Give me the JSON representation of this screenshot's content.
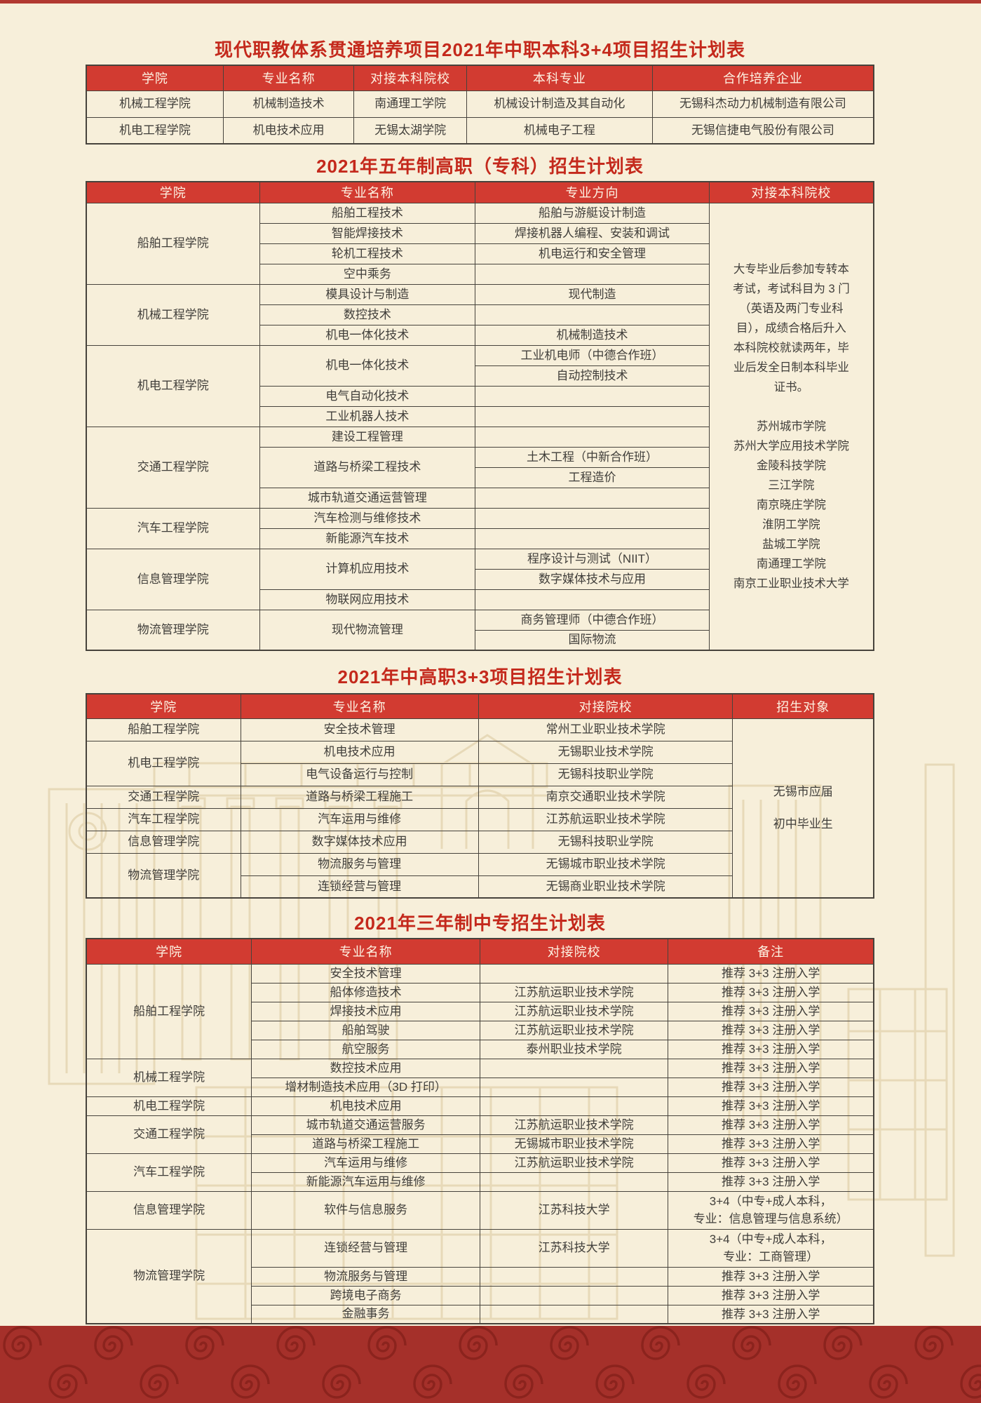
{
  "page": {
    "background_color": "#f7efda",
    "top_strip_color": "#b23931",
    "title_color": "#c4291c",
    "header_bar_color": "#d23b31",
    "border_color": "#47433c",
    "band_color": "#a5302a",
    "band_swirl_color": "#8b231d",
    "watermark": "building-line-art"
  },
  "table_3plus4": {
    "title": "现代职教体系贯通培养项目2021年中职本科3+4项目招生计划表",
    "headers": [
      "学院",
      "专业名称",
      "对接本科院校",
      "本科专业",
      "合作培养企业"
    ],
    "col_names": [
      "college-cell",
      "major-cell",
      "partner-university-cell",
      "bachelor-major-cell",
      "partner-company-cell"
    ],
    "rows": [
      {
        "cells": [
          {
            "t": "机械工程学院"
          },
          {
            "t": "机械制造技术"
          },
          {
            "t": "南通理工学院"
          },
          {
            "t": "机械设计制造及其自动化"
          },
          {
            "t": "无锡科杰动力机械制造有限公司"
          }
        ]
      },
      {
        "cells": [
          {
            "t": "机电工程学院"
          },
          {
            "t": "机电技术应用"
          },
          {
            "t": "无锡太湖学院"
          },
          {
            "t": "机械电子工程"
          },
          {
            "t": "无锡信捷电气股份有限公司"
          }
        ]
      }
    ]
  },
  "table_five_year": {
    "title": "2021年五年制高职（专科）招生计划表",
    "headers": [
      "学院",
      "专业名称",
      "专业方向",
      "对接本科院校"
    ],
    "col_names": [
      "college-cell",
      "major-cell",
      "direction-cell",
      "transfer-note-cell"
    ],
    "rows": [
      {
        "cells": [
          {
            "t": "船舶工程学院",
            "rs": 4
          },
          {
            "t": "船舶工程技术"
          },
          {
            "t": "船舶与游艇设计制造"
          },
          {
            "t": "大专毕业后参加专转本\n考试，考试科目为 3 门\n（英语及两门专业科\n目），成绩合格后升入\n本科院校就读两年，毕\n业后发全日制本科毕业\n证书。\n\n苏州城市学院\n苏州大学应用技术学院\n金陵科技学院\n三江学院\n南京晓庄学院\n淮阴工学院\n盐城工学院\n南通理工学院\n南京工业职业技术大学",
            "rs": 22
          }
        ]
      },
      {
        "cells": [
          {
            "t": "智能焊接技术"
          },
          {
            "t": "焊接机器人编程、安装和调试"
          }
        ]
      },
      {
        "cells": [
          {
            "t": "轮机工程技术"
          },
          {
            "t": "机电运行和安全管理"
          }
        ]
      },
      {
        "cells": [
          {
            "t": "空中乘务"
          },
          {
            "t": ""
          }
        ]
      },
      {
        "cells": [
          {
            "t": "机械工程学院",
            "rs": 3
          },
          {
            "t": "模具设计与制造"
          },
          {
            "t": "现代制造"
          }
        ]
      },
      {
        "cells": [
          {
            "t": "数控技术"
          },
          {
            "t": ""
          }
        ]
      },
      {
        "cells": [
          {
            "t": "机电一体化技术"
          },
          {
            "t": "机械制造技术"
          }
        ]
      },
      {
        "cells": [
          {
            "t": "机电工程学院",
            "rs": 4
          },
          {
            "t": "机电一体化技术",
            "rs": 2
          },
          {
            "t": "工业机电师（中德合作班）"
          }
        ]
      },
      {
        "cells": [
          {
            "t": "自动控制技术"
          }
        ]
      },
      {
        "cells": [
          {
            "t": "电气自动化技术"
          },
          {
            "t": ""
          }
        ]
      },
      {
        "cells": [
          {
            "t": "工业机器人技术"
          },
          {
            "t": ""
          }
        ]
      },
      {
        "cells": [
          {
            "t": "交通工程学院",
            "rs": 4
          },
          {
            "t": "建设工程管理"
          },
          {
            "t": ""
          }
        ]
      },
      {
        "cells": [
          {
            "t": "道路与桥梁工程技术",
            "rs": 2
          },
          {
            "t": "土木工程（中新合作班）"
          }
        ]
      },
      {
        "cells": [
          {
            "t": "工程造价"
          }
        ]
      },
      {
        "cells": [
          {
            "t": "城市轨道交通运营管理"
          },
          {
            "t": ""
          }
        ]
      },
      {
        "cells": [
          {
            "t": "汽车工程学院",
            "rs": 2
          },
          {
            "t": "汽车检测与维修技术"
          },
          {
            "t": ""
          }
        ]
      },
      {
        "cells": [
          {
            "t": "新能源汽车技术"
          },
          {
            "t": ""
          }
        ]
      },
      {
        "cells": [
          {
            "t": "信息管理学院",
            "rs": 3
          },
          {
            "t": "计算机应用技术",
            "rs": 2
          },
          {
            "t": "程序设计与测试（NIIT）"
          }
        ]
      },
      {
        "cells": [
          {
            "t": "数字媒体技术与应用"
          }
        ]
      },
      {
        "cells": [
          {
            "t": "物联网应用技术"
          },
          {
            "t": ""
          }
        ]
      },
      {
        "cells": [
          {
            "t": "物流管理学院",
            "rs": 2
          },
          {
            "t": "现代物流管理",
            "rs": 2
          },
          {
            "t": "商务管理师（中德合作班）"
          }
        ]
      },
      {
        "cells": [
          {
            "t": "国际物流"
          }
        ]
      }
    ]
  },
  "table_3plus3": {
    "title": "2021年中高职3+3项目招生计划表",
    "headers": [
      "学院",
      "专业名称",
      "对接院校",
      "招生对象"
    ],
    "col_names": [
      "college-cell",
      "major-cell",
      "partner-college-cell",
      "enrollment-target-cell"
    ],
    "rows": [
      {
        "cells": [
          {
            "t": "船舶工程学院"
          },
          {
            "t": "安全技术管理"
          },
          {
            "t": "常州工业职业技术学院"
          },
          {
            "t": "无锡市应届\n初中毕业生",
            "rs": 8
          }
        ]
      },
      {
        "cells": [
          {
            "t": "机电工程学院",
            "rs": 2
          },
          {
            "t": "机电技术应用"
          },
          {
            "t": "无锡职业技术学院"
          }
        ]
      },
      {
        "cells": [
          {
            "t": "电气设备运行与控制"
          },
          {
            "t": "无锡科技职业学院"
          }
        ]
      },
      {
        "cells": [
          {
            "t": "交通工程学院"
          },
          {
            "t": "道路与桥梁工程施工"
          },
          {
            "t": "南京交通职业技术学院"
          }
        ]
      },
      {
        "cells": [
          {
            "t": "汽车工程学院"
          },
          {
            "t": "汽车运用与维修"
          },
          {
            "t": "江苏航运职业技术学院"
          }
        ]
      },
      {
        "cells": [
          {
            "t": "信息管理学院"
          },
          {
            "t": "数字媒体技术应用"
          },
          {
            "t": "无锡科技职业学院"
          }
        ]
      },
      {
        "cells": [
          {
            "t": "物流管理学院",
            "rs": 2
          },
          {
            "t": "物流服务与管理"
          },
          {
            "t": "无锡城市职业技术学院"
          }
        ]
      },
      {
        "cells": [
          {
            "t": "连锁经营与管理"
          },
          {
            "t": "无锡商业职业技术学院"
          }
        ]
      }
    ]
  },
  "table_secondary": {
    "title": "2021年三年制中专招生计划表",
    "headers": [
      "学院",
      "专业名称",
      "对接院校",
      "备注"
    ],
    "col_names": [
      "college-cell",
      "major-cell",
      "partner-college-cell",
      "remark-cell"
    ],
    "rows": [
      {
        "cells": [
          {
            "t": "船舶工程学院",
            "rs": 5
          },
          {
            "t": "安全技术管理"
          },
          {
            "t": ""
          },
          {
            "t": "推荐 3+3 注册入学"
          }
        ]
      },
      {
        "cells": [
          {
            "t": "船体修造技术"
          },
          {
            "t": "江苏航运职业技术学院"
          },
          {
            "t": "推荐 3+3 注册入学"
          }
        ]
      },
      {
        "cells": [
          {
            "t": "焊接技术应用"
          },
          {
            "t": "江苏航运职业技术学院"
          },
          {
            "t": "推荐 3+3 注册入学"
          }
        ]
      },
      {
        "cells": [
          {
            "t": "船舶驾驶"
          },
          {
            "t": "江苏航运职业技术学院"
          },
          {
            "t": "推荐 3+3 注册入学"
          }
        ]
      },
      {
        "cells": [
          {
            "t": "航空服务"
          },
          {
            "t": "泰州职业技术学院"
          },
          {
            "t": "推荐 3+3 注册入学"
          }
        ]
      },
      {
        "cells": [
          {
            "t": "机械工程学院",
            "rs": 2
          },
          {
            "t": "数控技术应用"
          },
          {
            "t": ""
          },
          {
            "t": "推荐 3+3 注册入学"
          }
        ]
      },
      {
        "cells": [
          {
            "t": "增材制造技术应用（3D 打印）"
          },
          {
            "t": ""
          },
          {
            "t": "推荐 3+3 注册入学"
          }
        ]
      },
      {
        "cells": [
          {
            "t": "机电工程学院"
          },
          {
            "t": "机电技术应用"
          },
          {
            "t": ""
          },
          {
            "t": "推荐 3+3 注册入学"
          }
        ]
      },
      {
        "cells": [
          {
            "t": "交通工程学院",
            "rs": 2
          },
          {
            "t": "城市轨道交通运营服务"
          },
          {
            "t": "江苏航运职业技术学院"
          },
          {
            "t": "推荐 3+3 注册入学"
          }
        ]
      },
      {
        "cells": [
          {
            "t": "道路与桥梁工程施工"
          },
          {
            "t": "无锡城市职业技术学院"
          },
          {
            "t": "推荐 3+3 注册入学"
          }
        ]
      },
      {
        "cells": [
          {
            "t": "汽车工程学院",
            "rs": 2
          },
          {
            "t": "汽车运用与维修"
          },
          {
            "t": "江苏航运职业技术学院"
          },
          {
            "t": "推荐 3+3 注册入学"
          }
        ]
      },
      {
        "cells": [
          {
            "t": "新能源汽车运用与维修"
          },
          {
            "t": ""
          },
          {
            "t": "推荐 3+3 注册入学"
          }
        ]
      },
      {
        "h": 2,
        "cells": [
          {
            "t": "信息管理学院"
          },
          {
            "t": "软件与信息服务"
          },
          {
            "t": "江苏科技大学"
          },
          {
            "t": "3+4（中专+成人本科，\n专业：信息管理与信息系统）"
          }
        ]
      },
      {
        "h": 2,
        "cells": [
          {
            "t": "物流管理学院",
            "rs": 4
          },
          {
            "t": "连锁经营与管理"
          },
          {
            "t": "江苏科技大学"
          },
          {
            "t": "3+4（中专+成人本科，\n专业：工商管理）"
          }
        ]
      },
      {
        "cells": [
          {
            "t": "物流服务与管理"
          },
          {
            "t": ""
          },
          {
            "t": "推荐 3+3 注册入学"
          }
        ]
      },
      {
        "cells": [
          {
            "t": "跨境电子商务"
          },
          {
            "t": ""
          },
          {
            "t": "推荐 3+3 注册入学"
          }
        ]
      },
      {
        "cells": [
          {
            "t": "金融事务"
          },
          {
            "t": ""
          },
          {
            "t": "推荐 3+3 注册入学"
          }
        ]
      }
    ]
  }
}
